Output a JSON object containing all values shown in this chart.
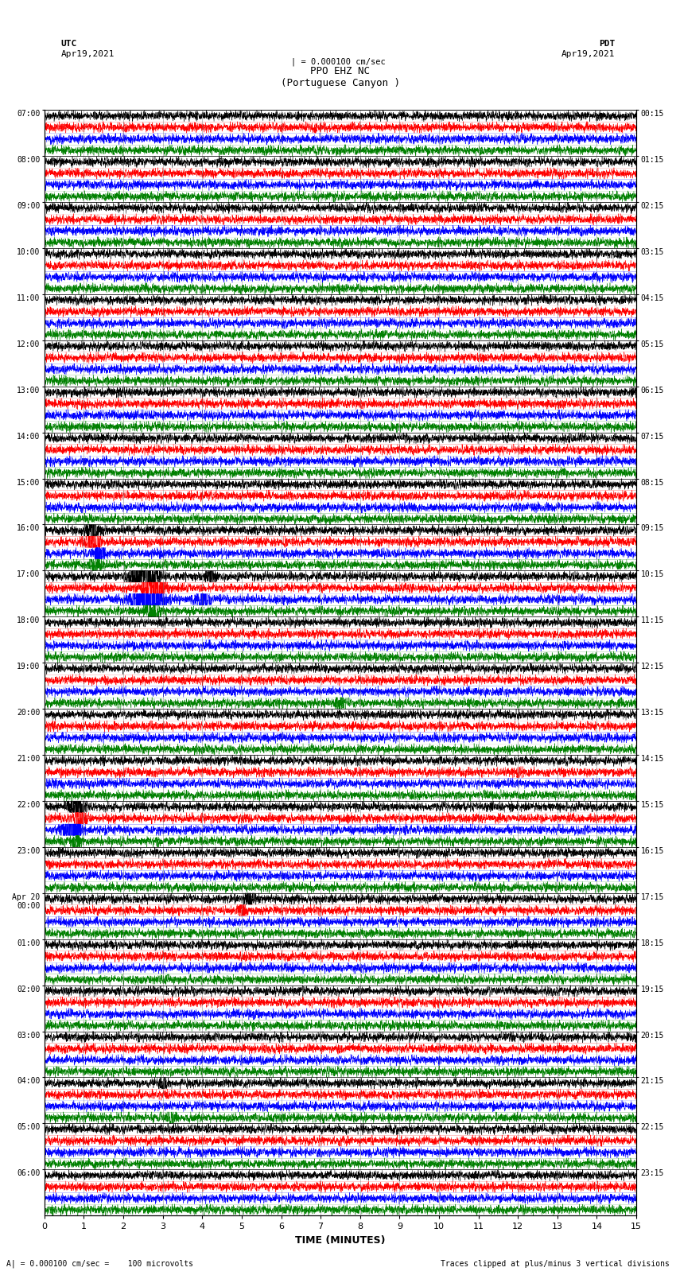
{
  "title_line1": "PPO EHZ NC",
  "title_line2": "(Portuguese Canyon )",
  "title_line3": "| = 0.000100 cm/sec",
  "utc_label": "UTC",
  "utc_date": "Apr19,2021",
  "pdt_label": "PDT",
  "pdt_date": "Apr19,2021",
  "xlabel": "TIME (MINUTES)",
  "footer_left": "A| = 0.000100 cm/sec =    100 microvolts",
  "footer_right": "Traces clipped at plus/minus 3 vertical divisions",
  "hour_labels_left": [
    "07:00",
    "08:00",
    "09:00",
    "10:00",
    "11:00",
    "12:00",
    "13:00",
    "14:00",
    "15:00",
    "16:00",
    "17:00",
    "18:00",
    "19:00",
    "20:00",
    "21:00",
    "22:00",
    "23:00",
    "Apr 20\n00:00",
    "01:00",
    "02:00",
    "03:00",
    "04:00",
    "05:00",
    "06:00"
  ],
  "hour_labels_right": [
    "00:15",
    "01:15",
    "02:15",
    "03:15",
    "04:15",
    "05:15",
    "06:15",
    "07:15",
    "08:15",
    "09:15",
    "10:15",
    "11:15",
    "12:15",
    "13:15",
    "14:15",
    "15:15",
    "16:15",
    "17:15",
    "18:15",
    "19:15",
    "20:15",
    "21:15",
    "22:15",
    "23:15"
  ],
  "trace_colors": [
    "black",
    "red",
    "blue",
    "green"
  ],
  "bg_color": "white",
  "xmin": 0,
  "xmax": 15,
  "xticks": [
    0,
    1,
    2,
    3,
    4,
    5,
    6,
    7,
    8,
    9,
    10,
    11,
    12,
    13,
    14,
    15
  ],
  "num_traces_per_row": 4,
  "seed": 42,
  "T": 4500,
  "noise_amplitude": 0.35,
  "grid_color": "#666666",
  "grid_alpha": 0.7,
  "lw": 0.3,
  "events": [
    [
      9,
      0,
      1.2,
      1.8,
      0.5
    ],
    [
      9,
      1,
      1.2,
      2.0,
      0.5
    ],
    [
      9,
      2,
      1.4,
      1.5,
      0.4
    ],
    [
      9,
      3,
      1.3,
      1.2,
      0.4
    ],
    [
      10,
      0,
      2.5,
      3.0,
      0.8
    ],
    [
      10,
      1,
      2.8,
      2.5,
      0.6
    ],
    [
      10,
      2,
      2.6,
      3.5,
      0.9
    ],
    [
      10,
      3,
      2.7,
      2.0,
      0.5
    ],
    [
      10,
      0,
      4.2,
      1.5,
      0.3
    ],
    [
      10,
      2,
      4.0,
      1.8,
      0.4
    ],
    [
      12,
      3,
      7.5,
      1.0,
      0.4
    ],
    [
      15,
      0,
      0.8,
      2.5,
      0.5
    ],
    [
      15,
      1,
      0.9,
      2.0,
      0.4
    ],
    [
      15,
      2,
      0.7,
      3.0,
      0.6
    ],
    [
      15,
      3,
      0.8,
      1.5,
      0.3
    ],
    [
      17,
      0,
      5.2,
      1.2,
      0.4
    ],
    [
      17,
      1,
      5.0,
      1.0,
      0.3
    ],
    [
      5,
      3,
      0.5,
      0.6,
      0.2
    ],
    [
      14,
      1,
      12.0,
      0.7,
      0.3
    ],
    [
      21,
      0,
      3.0,
      1.0,
      0.3
    ],
    [
      21,
      3,
      3.2,
      0.8,
      0.3
    ]
  ]
}
